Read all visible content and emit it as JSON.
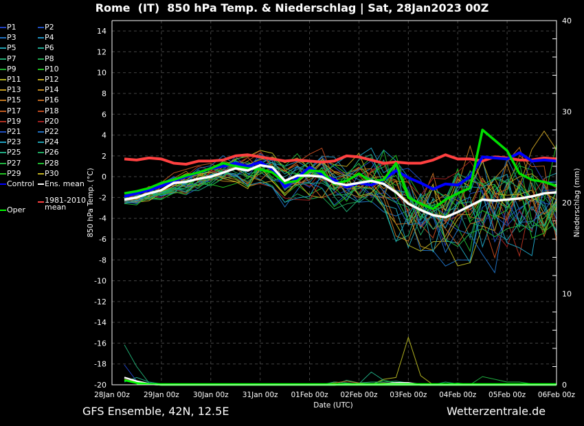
{
  "title": "Rome  (IT)  850 hPa Temp. & Niederschlag | Sat, 28Jan2023 00Z",
  "footer": {
    "left": "GFS Ensemble, 42N, 12.5E",
    "right": "Wetterzentrale.de"
  },
  "legend": [
    {
      "label": "P1",
      "color": "#1f3fbf"
    },
    {
      "label": "P2",
      "color": "#1f4fbf"
    },
    {
      "label": "P3",
      "color": "#1f6fbf"
    },
    {
      "label": "P4",
      "color": "#1f8fbf"
    },
    {
      "label": "P5",
      "color": "#1fa0b0"
    },
    {
      "label": "P6",
      "color": "#1fa890"
    },
    {
      "label": "P7",
      "color": "#1fa870"
    },
    {
      "label": "P8",
      "color": "#1fa850"
    },
    {
      "label": "P9",
      "color": "#1fb030"
    },
    {
      "label": "P10",
      "color": "#20c020"
    },
    {
      "label": "P11",
      "color": "#b0b020"
    },
    {
      "label": "P12",
      "color": "#c0a820"
    },
    {
      "label": "P13",
      "color": "#c09a20"
    },
    {
      "label": "P14",
      "color": "#c08820"
    },
    {
      "label": "P15",
      "color": "#c07820"
    },
    {
      "label": "P16",
      "color": "#c06a20"
    },
    {
      "label": "P17",
      "color": "#c05a20"
    },
    {
      "label": "P18",
      "color": "#c04a20"
    },
    {
      "label": "P19",
      "color": "#b03020"
    },
    {
      "label": "P20",
      "color": "#a02020"
    },
    {
      "label": "P21",
      "color": "#1f4fbf"
    },
    {
      "label": "P22",
      "color": "#1f6fbf"
    },
    {
      "label": "P23",
      "color": "#1f9fbf"
    },
    {
      "label": "P24",
      "color": "#1fa0b0"
    },
    {
      "label": "P25",
      "color": "#1fa880"
    },
    {
      "label": "P26",
      "color": "#1fa860"
    },
    {
      "label": "P27",
      "color": "#1fb040"
    },
    {
      "label": "P28",
      "color": "#1fb830"
    },
    {
      "label": "P29",
      "color": "#20c020"
    },
    {
      "label": "P30",
      "color": "#c0b020"
    },
    {
      "label": "Control",
      "color": "#0000ff"
    },
    {
      "label": "Ens. mean",
      "color": "#ffffff"
    },
    {
      "label": "1981-2010 mean",
      "color": "#ff4040"
    },
    {
      "label": "Oper",
      "color": "#00ff00"
    }
  ],
  "chart_data": {
    "type": "line",
    "title": "Rome  (IT)  850 hPa Temp. & Niederschlag | Sat, 28Jan2023 00Z",
    "xlabel": "Date (UTC)",
    "ylabel": "850 hPa Temp. (°C)",
    "y2label": "Niederschlag (mm)",
    "xlim_hours": [
      0,
      216
    ],
    "ylim": [
      -20,
      15
    ],
    "y2lim": [
      0,
      40
    ],
    "grid": true,
    "x_tick_labels": [
      "28Jan 00z",
      "29Jan 00z",
      "30Jan 00z",
      "31Jan 00z",
      "01Feb 00z",
      "02Feb 00z",
      "03Feb 00z",
      "04Feb 00z",
      "05Feb 00z",
      "06Feb 00z"
    ],
    "y_ticks": [
      14,
      12,
      10,
      8,
      6,
      4,
      2,
      0,
      -2,
      -4,
      -6,
      -8,
      -10,
      -12,
      -14,
      -16,
      -18,
      -20
    ],
    "y2_ticks": [
      40,
      30,
      20,
      10,
      0
    ],
    "hours": [
      6,
      12,
      18,
      24,
      30,
      36,
      42,
      48,
      54,
      60,
      66,
      72,
      78,
      84,
      90,
      96,
      102,
      108,
      114,
      120,
      126,
      132,
      138,
      144,
      150,
      156,
      162,
      168,
      174,
      180,
      186,
      192,
      198,
      204,
      210,
      216
    ],
    "series": [
      {
        "name": "1981-2010 mean",
        "values": [
          1.7,
          1.6,
          1.8,
          1.7,
          1.3,
          1.2,
          1.5,
          1.5,
          1.6,
          2.0,
          2.1,
          1.9,
          1.7,
          1.5,
          1.6,
          1.5,
          1.4,
          1.5,
          2.0,
          1.9,
          1.6,
          1.3,
          1.4,
          1.3,
          1.3,
          1.6,
          2.1,
          1.7,
          1.7,
          1.5,
          1.9,
          1.8,
          1.6,
          1.6,
          1.8,
          1.7
        ]
      },
      {
        "name": "Ens. mean",
        "values": [
          -2.2,
          -2.0,
          -1.6,
          -1.3,
          -0.6,
          -0.5,
          -0.2,
          0.0,
          0.4,
          0.8,
          0.6,
          1.1,
          0.9,
          -0.4,
          0.1,
          0.1,
          0.0,
          -0.6,
          -0.8,
          -0.6,
          -0.4,
          -0.7,
          -1.5,
          -2.6,
          -3.2,
          -3.7,
          -3.9,
          -3.4,
          -2.8,
          -2.2,
          -2.3,
          -2.2,
          -2.1,
          -1.9,
          -1.6,
          -1.5
        ]
      },
      {
        "name": "Control",
        "values": [
          -1.9,
          -1.6,
          -1.3,
          -0.9,
          -0.4,
          0.0,
          0.4,
          0.8,
          1.0,
          1.3,
          1.0,
          1.4,
          0.7,
          -1.0,
          -0.1,
          0.9,
          0.2,
          -0.3,
          -1.0,
          -0.6,
          -0.8,
          -0.3,
          0.6,
          -0.1,
          -0.6,
          -1.2,
          -0.7,
          -0.8,
          0.0,
          1.9,
          1.8,
          1.7,
          2.3,
          1.5,
          1.6,
          1.5
        ]
      },
      {
        "name": "Oper",
        "values": [
          -1.6,
          -1.4,
          -1.1,
          -0.6,
          -0.3,
          0.1,
          0.4,
          0.8,
          1.3,
          1.0,
          0.8,
          0.7,
          0.4,
          -0.6,
          -0.4,
          0.6,
          0.5,
          -0.7,
          -0.4,
          0.3,
          -0.5,
          -0.3,
          1.3,
          -2.0,
          -2.6,
          -3.1,
          -2.2,
          -1.6,
          -1.1,
          4.5,
          3.5,
          2.5,
          0.3,
          -0.3,
          -0.5,
          -0.9
        ]
      }
    ],
    "precip_series": [
      {
        "name": "P11",
        "values": [
          0.6,
          0.3,
          0.2,
          0,
          0,
          0,
          0,
          0,
          0,
          0,
          0,
          0,
          0,
          0,
          0,
          0,
          0,
          0.3,
          0.2,
          0,
          0,
          0.6,
          0.8,
          5.2,
          1.0,
          0,
          0,
          0,
          0,
          0,
          0,
          0,
          0,
          0,
          0,
          0
        ]
      },
      {
        "name": "P7",
        "values": [
          4.4,
          2.0,
          0.2,
          0,
          0,
          0,
          0,
          0,
          0,
          0,
          0,
          0,
          0,
          0,
          0,
          0,
          0,
          0,
          0.5,
          0.2,
          0.3,
          0.3,
          0.4,
          0.2,
          0,
          0,
          0.3,
          0.1,
          0,
          0,
          0,
          0,
          0,
          0,
          0,
          0
        ]
      },
      {
        "name": "P1",
        "values": [
          2.2,
          0.4,
          0.2,
          0,
          0,
          0,
          0,
          0,
          0,
          0,
          0,
          0,
          0,
          0,
          0,
          0,
          0,
          0,
          0,
          0,
          0,
          0,
          0,
          0,
          0,
          0,
          0,
          0,
          0,
          0,
          0,
          0,
          0,
          0,
          0,
          0
        ]
      },
      {
        "name": "P25",
        "values": [
          0.3,
          0.8,
          0.3,
          0.1,
          0,
          0,
          0,
          0,
          0,
          0,
          0,
          0,
          0,
          0,
          0,
          0,
          0,
          0.3,
          0.2,
          0.1,
          1.4,
          0.5,
          0.2,
          0,
          0,
          0,
          0,
          0,
          0,
          0,
          0,
          0,
          0,
          0,
          0,
          0
        ]
      },
      {
        "name": "P16",
        "values": [
          0.5,
          0.3,
          0.1,
          0,
          0,
          0,
          0,
          0,
          0,
          0,
          0,
          0,
          0,
          0,
          0,
          0,
          0,
          0.2,
          0.4,
          0.2,
          0.1,
          0.2,
          0.1,
          0,
          0,
          0,
          0,
          0,
          0,
          0,
          0,
          0,
          0,
          0,
          0,
          0
        ]
      },
      {
        "name": "P27",
        "values": [
          0.4,
          0.3,
          0.1,
          0,
          0,
          0,
          0,
          0,
          0,
          0,
          0,
          0,
          0,
          0,
          0,
          0,
          0,
          0,
          0,
          0,
          0,
          0.5,
          0.2,
          0,
          0,
          0,
          0,
          0.2,
          0,
          0.9,
          0.6,
          0.3,
          0.3,
          0.1,
          0,
          0
        ]
      },
      {
        "name": "Ens. mean",
        "values": [
          0.8,
          0.4,
          0.1,
          0,
          0,
          0,
          0,
          0,
          0,
          0,
          0,
          0,
          0,
          0,
          0,
          0,
          0,
          0,
          0.1,
          0.1,
          0.1,
          0.1,
          0.2,
          0.2,
          0,
          0,
          0,
          0,
          0,
          0,
          0,
          0,
          0,
          0,
          0,
          0
        ]
      },
      {
        "name": "Oper",
        "values": [
          0.5,
          0.2,
          0.1,
          0,
          0,
          0,
          0,
          0,
          0,
          0,
          0,
          0,
          0,
          0,
          0,
          0,
          0,
          0,
          0,
          0,
          0,
          0,
          0,
          0,
          0,
          0,
          0,
          0,
          0,
          0,
          0,
          0,
          0,
          0,
          0,
          0
        ]
      }
    ]
  }
}
